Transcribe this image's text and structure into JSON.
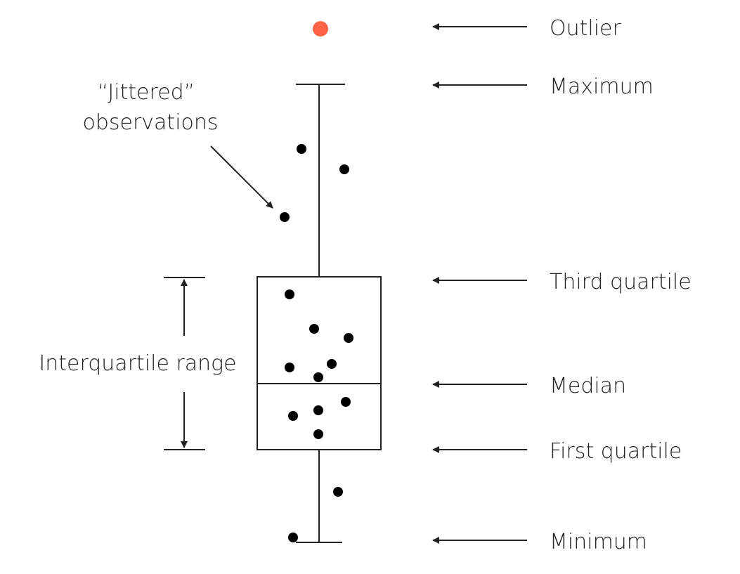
{
  "labels": {
    "outlier": "Outlier",
    "maximum": "Maximum",
    "third_quartile": "Third quartile",
    "median": "Median",
    "first_quartile": "First quartile",
    "minimum": "Minimum",
    "jitter_line1": "“Jittered”",
    "jitter_line2": "observations",
    "iqr": "Interquartile range"
  },
  "colors": {
    "outlier": "#ff6347",
    "point": "#000000",
    "line": "#222222"
  }
}
